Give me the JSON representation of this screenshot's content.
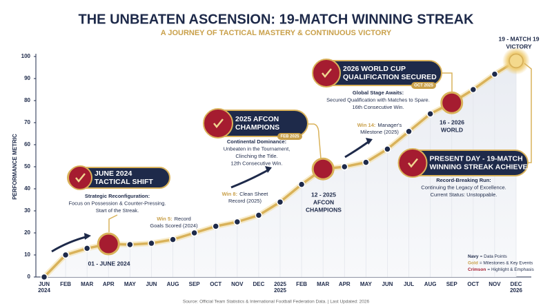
{
  "chart_data": {
    "type": "line",
    "title": "THE UNBEATEN ASCENSION: 19-MATCH WINNING STREAK",
    "subtitle": "A JOURNEY OF TACTICAL MASTERY & CONTINUOUS VICTORY",
    "y_label": "PERFORMANCE METRIC",
    "categories": [
      "JUN 2024",
      "FEB",
      "MAR",
      "APR",
      "MAY",
      "JUN",
      "AUG",
      "SEP",
      "OCT",
      "NOV",
      "DEC",
      "2025 2025",
      "FEB",
      "MAR",
      "APR",
      "MAY",
      "JUN",
      "JUL",
      "AUG",
      "SEP",
      "OCT",
      "NOV",
      "DEC 2026"
    ],
    "values": [
      0,
      10,
      13,
      15,
      14.7,
      15.3,
      17,
      20,
      23,
      25,
      28,
      34,
      42,
      49,
      50,
      52,
      58,
      66,
      74,
      79,
      85,
      92,
      98
    ],
    "line_color": "#d9b25a",
    "point_color": "#1e2a4a",
    "ylim": [
      0,
      100
    ],
    "yticks": [
      0,
      10,
      20,
      30,
      40,
      50,
      60,
      70,
      80,
      90,
      100
    ],
    "grid": false,
    "callouts": [
      {
        "title": [
          "JUNE 2024",
          "TACTICAL SHIFT"
        ],
        "body": [
          "Strategic Reconfiguration:",
          "Focus on Possession & Counter-Pressing.",
          "Start of the Streak."
        ]
      },
      {
        "title": [
          "2025 AFCON",
          "CHAMPIONS"
        ],
        "tag": "FEB 2025",
        "body": [
          "Continental Dominance:",
          "Unbeaten in the Tournament,",
          "Clinching the Title.",
          "12th Consecutive Win."
        ]
      },
      {
        "title": [
          "2026 WORLD CUP",
          "QUALIFICATION SECURED"
        ],
        "tag": "OCT 2025",
        "body": [
          "Global Stage Awaits:",
          "Secured Qualification with Matches to Spare.",
          "16th Consecutive Win."
        ]
      },
      {
        "title": [
          "PRESENT DAY - 19-MATCH",
          "WINNING STREAK ACHIEVED"
        ],
        "body": [
          "Record-Breaking Run:",
          "Continuing the Legacy of Excellence.",
          "Current Status: Unstoppable."
        ]
      }
    ],
    "milestone_labels": [
      {
        "lines": [
          "01 - JUNE 2024"
        ]
      },
      {
        "lines": [
          "12 - 2025",
          "AFCON",
          "CHAMPIONS"
        ]
      },
      {
        "lines": [
          "16 - 2026",
          "WORLD"
        ]
      },
      {
        "lines": [
          "19 - MATCH 19",
          "VICTORY"
        ]
      }
    ],
    "notes": [
      {
        "lead": "Win 5:",
        "lines": [
          "Record",
          "Goals Scored (2024)"
        ]
      },
      {
        "lead": "Win 8:",
        "lines": [
          "Clean Sheet",
          "Record (2025)"
        ]
      },
      {
        "lead": "Win 14:",
        "lines": [
          "Manager's",
          "Milestone (2025)"
        ]
      }
    ],
    "legend": [
      {
        "key": "Navy",
        "text": "= Data Points",
        "color": "#1e2a4a"
      },
      {
        "key": "Gold",
        "text": "= Milestones & Key Events",
        "color": "#c9a04a"
      },
      {
        "key": "Crimson",
        "text": "= Highlight & Emphasis",
        "color": "#a51c30"
      }
    ],
    "source": "Source: Official Team Statistics & International Football Federation Data. | Last Updated: 2026"
  }
}
